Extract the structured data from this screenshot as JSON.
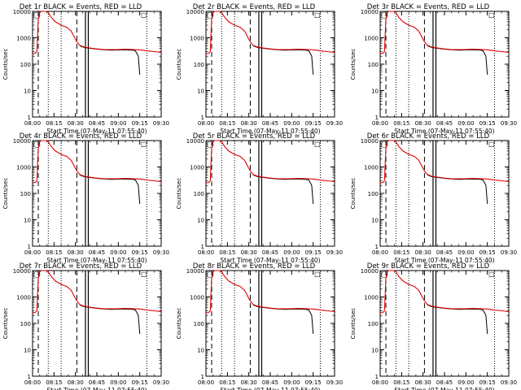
{
  "chart_data": {
    "type": "line",
    "panel_titles": [
      "Det 1r BLACK = Events, RED = LLD",
      "Det 2r BLACK = Events, RED = LLD",
      "Det 3r BLACK = Events, RED = LLD",
      "Det 4r BLACK = Events, RED = LLD",
      "Det 5r BLACK = Events, RED = LLD",
      "Det 6r BLACK = Events, RED = LLD",
      "Det 7r BLACK = Events, RED = LLD",
      "Det 8r BLACK = Events, RED = LLD",
      "Det 9r BLACK = Events, RED = LLD"
    ],
    "xlabel": "Start Time (07-May-11 07:55:40)",
    "ylabel": "Counts/sec",
    "y_scale": "log",
    "ylim": [
      1,
      10000
    ],
    "xlim": [
      "08:00",
      "09:30"
    ],
    "x_ticks": [
      "08:00",
      "08:15",
      "08:30",
      "08:45",
      "09:00",
      "09:15",
      "09:30"
    ],
    "y_ticks": [
      "1",
      "10",
      "100",
      "1000",
      "10000"
    ],
    "vertical_markers": {
      "dashed": [
        "08:04",
        "08:31"
      ],
      "dotted": [
        "08:11",
        "08:20",
        "09:20"
      ],
      "solid": [
        "08:37",
        "08:39"
      ]
    },
    "annotations": [
      {
        "symbol": "◯",
        "x": "08:03",
        "y": 10000
      },
      {
        "symbol": "□",
        "x": "09:18",
        "y": 10000
      }
    ],
    "series": [
      {
        "name": "BLACK = Events",
        "color": "#000000",
        "points": [
          [
            "08:33",
            500
          ],
          [
            "08:36",
            430
          ],
          [
            "08:40",
            400
          ],
          [
            "08:45",
            370
          ],
          [
            "08:50",
            350
          ],
          [
            "08:55",
            340
          ],
          [
            "09:00",
            345
          ],
          [
            "09:05",
            350
          ],
          [
            "09:10",
            340
          ],
          [
            "09:12",
            320
          ],
          [
            "09:14",
            200
          ],
          [
            "09:15",
            40
          ]
        ]
      },
      {
        "name": "RED = LLD",
        "color": "#e00000",
        "points": [
          [
            "08:00",
            250
          ],
          [
            "08:02",
            260
          ],
          [
            "08:03",
            300
          ],
          [
            "08:04",
            5000
          ],
          [
            "08:05",
            9000
          ],
          [
            "08:06",
            10000
          ],
          [
            "08:10",
            10000
          ],
          [
            "08:11",
            9000
          ],
          [
            "08:13",
            6000
          ],
          [
            "08:16",
            4000
          ],
          [
            "08:20",
            3000
          ],
          [
            "08:24",
            2500
          ],
          [
            "08:27",
            1800
          ],
          [
            "08:31",
            700
          ],
          [
            "08:33",
            520
          ],
          [
            "08:36",
            450
          ],
          [
            "08:40",
            410
          ],
          [
            "08:45",
            380
          ],
          [
            "08:50",
            360
          ],
          [
            "08:55",
            355
          ],
          [
            "09:00",
            360
          ],
          [
            "09:05",
            370
          ],
          [
            "09:10",
            360
          ],
          [
            "09:15",
            350
          ],
          [
            "09:20",
            320
          ],
          [
            "09:25",
            300
          ],
          [
            "09:30",
            280
          ]
        ]
      }
    ]
  }
}
